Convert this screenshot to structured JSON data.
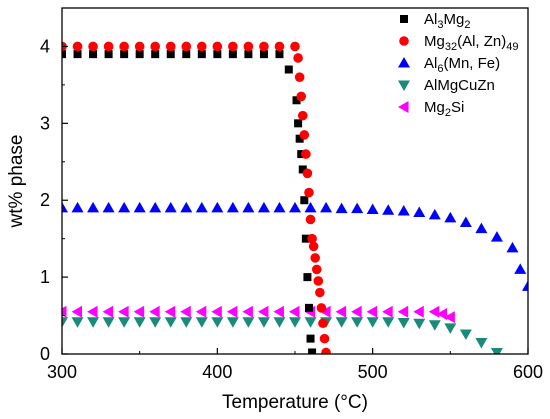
{
  "chart_data": {
    "type": "scatter",
    "xlabel": "Temperature (°C)",
    "ylabel": "wt% phase",
    "xlim": [
      300,
      600
    ],
    "ylim": [
      0,
      4.5
    ],
    "x_ticks": [
      300,
      400,
      500,
      600
    ],
    "y_ticks": [
      0,
      1,
      2,
      3,
      4
    ],
    "grid": false,
    "legend_position": "top-right",
    "series": [
      {
        "name": "Al3Mg2",
        "label_parts": [
          [
            "Al",
            ""
          ],
          [
            "3",
            "sub"
          ],
          [
            "Mg",
            ""
          ],
          [
            "2",
            "sub"
          ]
        ],
        "marker": "square",
        "color": "#000000",
        "x": [
          300,
          310,
          320,
          330,
          340,
          350,
          360,
          370,
          380,
          390,
          400,
          410,
          420,
          430,
          440,
          446,
          451,
          452,
          453,
          454,
          455,
          456,
          457,
          458,
          459,
          460,
          461
        ],
        "y": [
          3.9,
          3.9,
          3.9,
          3.9,
          3.9,
          3.9,
          3.9,
          3.9,
          3.9,
          3.9,
          3.9,
          3.9,
          3.9,
          3.9,
          3.9,
          3.7,
          3.3,
          3.0,
          2.8,
          2.6,
          2.4,
          2.0,
          1.5,
          1.0,
          0.6,
          0.2,
          0.02
        ]
      },
      {
        "name": "Mg32(Al, Zn)49",
        "label_parts": [
          [
            "Mg",
            ""
          ],
          [
            "32",
            "sub"
          ],
          [
            "(Al, Zn)",
            ""
          ],
          [
            "49",
            "sub"
          ]
        ],
        "marker": "circle",
        "color": "#ff0000",
        "x": [
          300,
          310,
          320,
          330,
          340,
          350,
          360,
          370,
          380,
          390,
          400,
          410,
          420,
          430,
          440,
          450,
          452,
          453,
          454,
          455,
          456,
          457,
          458,
          459,
          460,
          461,
          462,
          463,
          464,
          465,
          466,
          467,
          468,
          469,
          470
        ],
        "y": [
          4.0,
          4.0,
          4.0,
          4.0,
          4.0,
          4.0,
          4.0,
          4.0,
          4.0,
          4.0,
          4.0,
          4.0,
          4.0,
          4.0,
          4.0,
          4.0,
          3.85,
          3.6,
          3.35,
          3.1,
          2.85,
          2.6,
          2.35,
          2.1,
          1.75,
          1.5,
          1.4,
          1.25,
          1.1,
          0.95,
          0.8,
          0.6,
          0.4,
          0.2,
          0.02
        ]
      },
      {
        "name": "Al6(Mn, Fe)",
        "label_parts": [
          [
            "Al",
            ""
          ],
          [
            "6",
            "sub"
          ],
          [
            "(Mn, Fe)",
            ""
          ]
        ],
        "marker": "triangle-up",
        "color": "#0000ff",
        "x": [
          300,
          310,
          320,
          330,
          340,
          350,
          360,
          370,
          380,
          390,
          400,
          410,
          420,
          430,
          440,
          450,
          460,
          470,
          480,
          490,
          500,
          510,
          520,
          530,
          540,
          550,
          560,
          570,
          580,
          590,
          595,
          600
        ],
        "y": [
          1.9,
          1.9,
          1.9,
          1.9,
          1.9,
          1.9,
          1.9,
          1.9,
          1.9,
          1.9,
          1.9,
          1.9,
          1.9,
          1.9,
          1.9,
          1.9,
          1.9,
          1.9,
          1.89,
          1.89,
          1.88,
          1.87,
          1.86,
          1.84,
          1.81,
          1.77,
          1.71,
          1.63,
          1.52,
          1.38,
          1.1,
          0.88
        ]
      },
      {
        "name": "AlMgCuZn",
        "label_parts": [
          [
            "AlMgCuZn",
            ""
          ]
        ],
        "marker": "triangle-down",
        "color": "#1a8a7a",
        "x": [
          300,
          310,
          320,
          330,
          340,
          350,
          360,
          370,
          380,
          390,
          400,
          410,
          420,
          430,
          440,
          450,
          460,
          470,
          480,
          490,
          500,
          510,
          520,
          530,
          540,
          550,
          560,
          570,
          580
        ],
        "y": [
          0.42,
          0.42,
          0.42,
          0.42,
          0.42,
          0.42,
          0.42,
          0.42,
          0.42,
          0.42,
          0.42,
          0.42,
          0.42,
          0.42,
          0.42,
          0.42,
          0.42,
          0.42,
          0.42,
          0.42,
          0.42,
          0.42,
          0.41,
          0.4,
          0.38,
          0.34,
          0.26,
          0.15,
          0.02
        ]
      },
      {
        "name": "Mg2Si",
        "label_parts": [
          [
            "Mg",
            ""
          ],
          [
            "2",
            "sub"
          ],
          [
            "Si",
            ""
          ]
        ],
        "marker": "triangle-left",
        "color": "#ff00ff",
        "x": [
          300,
          310,
          320,
          330,
          340,
          350,
          360,
          370,
          380,
          390,
          400,
          410,
          420,
          430,
          440,
          450,
          460,
          470,
          480,
          490,
          500,
          510,
          520,
          530,
          540,
          545,
          550
        ],
        "y": [
          0.55,
          0.55,
          0.55,
          0.55,
          0.55,
          0.55,
          0.55,
          0.55,
          0.55,
          0.55,
          0.55,
          0.55,
          0.55,
          0.55,
          0.55,
          0.55,
          0.55,
          0.55,
          0.55,
          0.55,
          0.55,
          0.55,
          0.55,
          0.55,
          0.55,
          0.52,
          0.48
        ]
      }
    ]
  }
}
